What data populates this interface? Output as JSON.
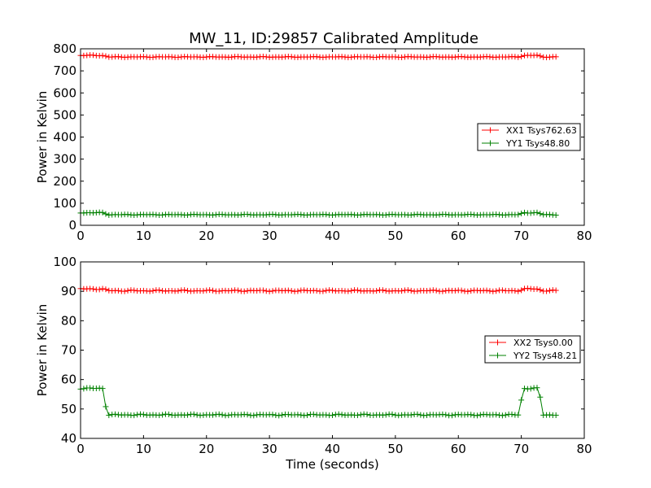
{
  "chart_data": [
    {
      "type": "line",
      "title": "MW_11, ID:29857 Calibrated Amplitude",
      "xlabel": "",
      "ylabel": "Power in Kelvin",
      "xlim": [
        0,
        80
      ],
      "ylim": [
        0,
        800
      ],
      "x_ticks": [
        0,
        10,
        20,
        30,
        40,
        50,
        60,
        70,
        80
      ],
      "y_ticks": [
        0,
        100,
        200,
        300,
        400,
        500,
        600,
        700,
        800
      ],
      "x_tick_labels": [
        "0",
        "10",
        "20",
        "30",
        "40",
        "50",
        "60",
        "70",
        "80"
      ],
      "y_tick_labels": [
        "0",
        "100",
        "200",
        "300",
        "400",
        "500",
        "600",
        "700",
        "800"
      ],
      "legend_position": "center-right",
      "series": [
        {
          "name": "XX1 Tsys762.63",
          "color": "#ff0000",
          "marker": "+",
          "profile": [
            [
              0,
              770
            ],
            [
              3.5,
              770
            ],
            [
              4.5,
              763
            ],
            [
              69.5,
              763
            ],
            [
              70.5,
              770
            ],
            [
              72.5,
              770
            ],
            [
              73.5,
              763
            ],
            [
              75.5,
              763
            ]
          ]
        },
        {
          "name": "YY1 Tsys48.80",
          "color": "#008000",
          "marker": "+",
          "profile": [
            [
              0,
              57
            ],
            [
              3.5,
              57
            ],
            [
              4.5,
              48
            ],
            [
              69.5,
              48
            ],
            [
              70.5,
              57
            ],
            [
              72.5,
              57
            ],
            [
              73.5,
              48
            ],
            [
              75.5,
              48
            ]
          ]
        }
      ]
    },
    {
      "type": "line",
      "title": "",
      "xlabel": "Time (seconds)",
      "ylabel": "Power in Kelvin",
      "xlim": [
        0,
        80
      ],
      "ylim": [
        40,
        100
      ],
      "x_ticks": [
        0,
        10,
        20,
        30,
        40,
        50,
        60,
        70,
        80
      ],
      "y_ticks": [
        40,
        50,
        60,
        70,
        80,
        90,
        100
      ],
      "x_tick_labels": [
        "0",
        "10",
        "20",
        "30",
        "40",
        "50",
        "60",
        "70",
        "80"
      ],
      "y_tick_labels": [
        "40",
        "50",
        "60",
        "70",
        "80",
        "90",
        "100"
      ],
      "legend_position": "center-right",
      "series": [
        {
          "name": "XX2 Tsys0.00",
          "color": "#ff0000",
          "marker": "+",
          "profile": [
            [
              0,
              90.8
            ],
            [
              3.5,
              90.8
            ],
            [
              4.5,
              90.2
            ],
            [
              69.5,
              90.2
            ],
            [
              70.5,
              90.8
            ],
            [
              72.5,
              90.8
            ],
            [
              73.5,
              90.2
            ],
            [
              75.5,
              90.2
            ]
          ]
        },
        {
          "name": "YY2 Tsys48.21",
          "color": "#008000",
          "marker": "+",
          "profile": [
            [
              0,
              57
            ],
            [
              3.5,
              57
            ],
            [
              4.0,
              51
            ],
            [
              4.5,
              48
            ],
            [
              69.5,
              48
            ],
            [
              70.0,
              53
            ],
            [
              70.5,
              57
            ],
            [
              72.5,
              57
            ],
            [
              73.0,
              54
            ],
            [
              73.5,
              48
            ],
            [
              75.5,
              48
            ]
          ]
        }
      ]
    }
  ]
}
